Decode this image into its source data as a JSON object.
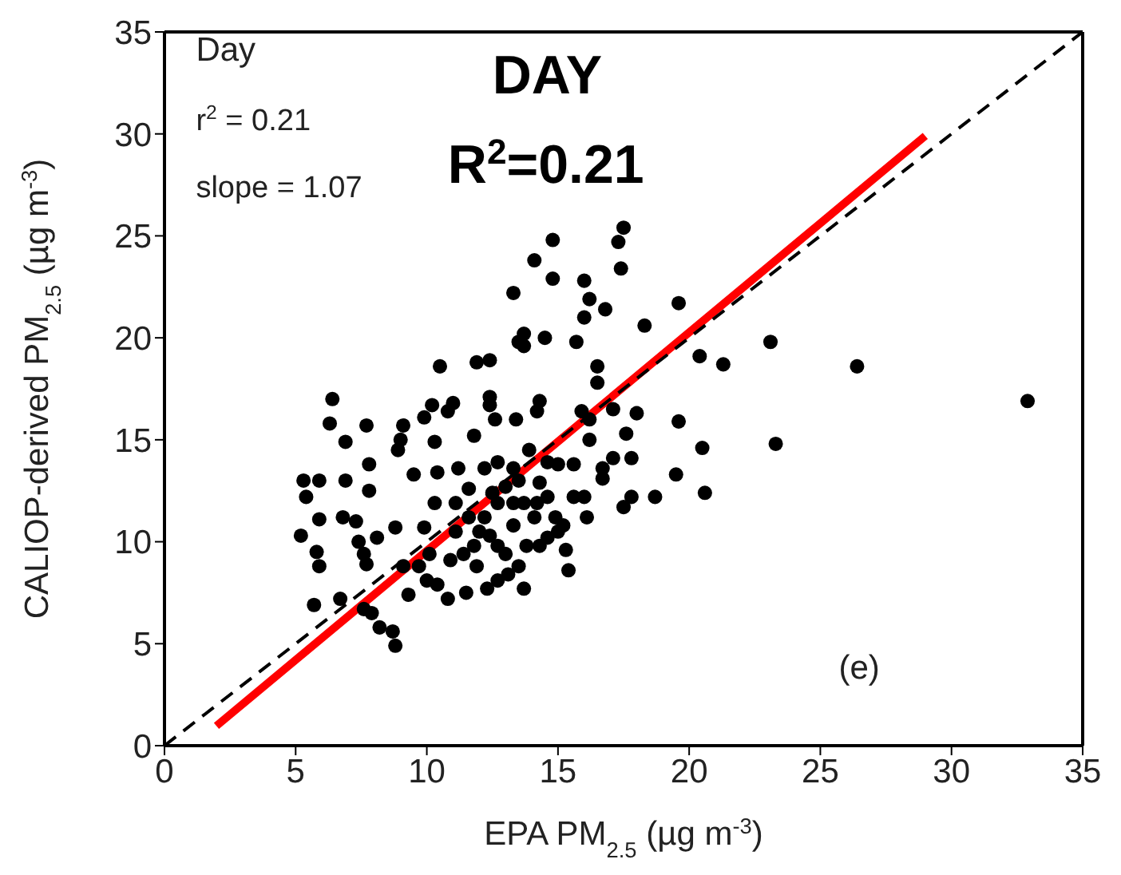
{
  "chart_data": {
    "type": "scatter",
    "xlabel": "EPA PM$_{2.5}$ (µg m$^{-3}$)",
    "ylabel": "CALIOP-derived PM$_{2.5}$ (µg m$^{-3}$)",
    "annotations": [
      "Day",
      "r$^{2}$ = 0.21",
      "slope = 1.07",
      "DAY",
      "R$^{2}$=0.21",
      "(e)"
    ],
    "xlim": [
      0,
      35
    ],
    "ylim": [
      0,
      35
    ],
    "xticks": [
      0,
      5,
      10,
      15,
      20,
      25,
      30,
      35
    ],
    "yticks": [
      0,
      5,
      10,
      15,
      20,
      25,
      30,
      35
    ],
    "series": [
      {
        "marker": "circle",
        "color": "#000000",
        "x": [
          5.2,
          5.3,
          5.4,
          5.9,
          5.7,
          5.8,
          5.9,
          5.9,
          6.4,
          6.3,
          6.9,
          6.9,
          6.8,
          6.7,
          7.3,
          7.4,
          7.6,
          7.7,
          7.7,
          7.8,
          7.8,
          7.6,
          7.9,
          8.2,
          8.7,
          8.8,
          8.1,
          8.8,
          8.9,
          9.0,
          9.1,
          9.5,
          9.3,
          9.1,
          9.7,
          9.9,
          10.2,
          10.5,
          10.3,
          10.8,
          11.0,
          10.4,
          10.3,
          9.9,
          10.1,
          10.0,
          10.4,
          10.8,
          11.5,
          10.9,
          11.1,
          11.1,
          11.2,
          11.8,
          11.9,
          12.4,
          12.4,
          12.4,
          12.6,
          11.6,
          11.6,
          11.8,
          11.9,
          12.3,
          12.4,
          12.7,
          12.7,
          13.3,
          13.4,
          13.5,
          13.7,
          13.7,
          14.1,
          14.2,
          14.3,
          14.5,
          14.8,
          14.8,
          13.3,
          13.7,
          13.3,
          13.0,
          13.1,
          13.8,
          14.1,
          14.3,
          14.6,
          14.6,
          13.9,
          13.5,
          13.7,
          12.7,
          12.2,
          15.2,
          15.3,
          15.4,
          15.0,
          15.6,
          15.6,
          15.7,
          15.9,
          16.0,
          16.0,
          16.2,
          16.5,
          16.5,
          16.2,
          16.2,
          16.0,
          16.1,
          16.7,
          16.8,
          16.7,
          17.1,
          17.3,
          17.5,
          17.4,
          17.1,
          17.5,
          17.6,
          17.8,
          18.0,
          17.8,
          18.3,
          18.7,
          19.5,
          19.6,
          19.6,
          20.4,
          20.5,
          20.6,
          21.3,
          23.1,
          23.3,
          26.4,
          32.9,
          14.3,
          12.7,
          13.3,
          14.2,
          12.2,
          11.4,
          14.9,
          13.0,
          12.0,
          14.6,
          13.5,
          12.5,
          15.0
        ],
        "values": [
          10.3,
          13.0,
          12.2,
          13.0,
          6.9,
          9.5,
          8.8,
          11.1,
          17.0,
          15.8,
          14.9,
          13.0,
          11.2,
          7.2,
          11.0,
          10.0,
          9.4,
          8.9,
          15.7,
          13.8,
          12.5,
          6.7,
          6.5,
          5.8,
          5.6,
          4.9,
          10.2,
          10.7,
          14.5,
          15.0,
          15.7,
          13.3,
          7.4,
          8.8,
          8.8,
          16.1,
          16.7,
          18.6,
          14.9,
          16.4,
          16.8,
          13.4,
          11.9,
          10.7,
          9.4,
          8.1,
          7.9,
          7.2,
          7.5,
          9.1,
          10.5,
          11.9,
          13.6,
          15.2,
          18.8,
          18.9,
          17.1,
          16.7,
          16.0,
          12.6,
          11.2,
          9.8,
          8.8,
          7.7,
          10.3,
          11.9,
          13.9,
          22.2,
          16.0,
          19.8,
          20.2,
          19.6,
          23.8,
          16.4,
          16.9,
          20.0,
          22.9,
          24.8,
          13.6,
          11.9,
          10.8,
          9.4,
          8.4,
          9.8,
          11.2,
          12.9,
          12.2,
          13.9,
          14.5,
          8.8,
          7.7,
          8.1,
          11.2,
          10.8,
          9.6,
          8.6,
          13.8,
          13.8,
          12.2,
          19.8,
          16.4,
          22.8,
          21.0,
          21.9,
          18.6,
          17.8,
          16.0,
          15.0,
          12.2,
          11.2,
          13.6,
          21.4,
          13.1,
          16.5,
          24.7,
          25.4,
          23.4,
          14.1,
          11.7,
          15.3,
          14.1,
          16.3,
          12.2,
          20.6,
          12.2,
          13.3,
          21.7,
          15.9,
          19.1,
          14.6,
          12.4,
          18.7,
          19.8,
          14.8,
          18.6,
          16.9,
          9.8,
          9.8,
          11.9,
          11.9,
          13.6,
          9.4,
          11.2,
          12.7,
          10.5,
          10.2,
          13.0,
          12.4,
          10.5
        ]
      },
      {
        "type": "line",
        "color": "#ff0000",
        "x": [
          1.98,
          29.0
        ],
        "values": [
          0.97,
          29.9
        ]
      },
      {
        "type": "line",
        "color": "#000000",
        "line_style": "dashed",
        "x": [
          0,
          35
        ],
        "values": [
          0,
          35
        ]
      }
    ]
  }
}
